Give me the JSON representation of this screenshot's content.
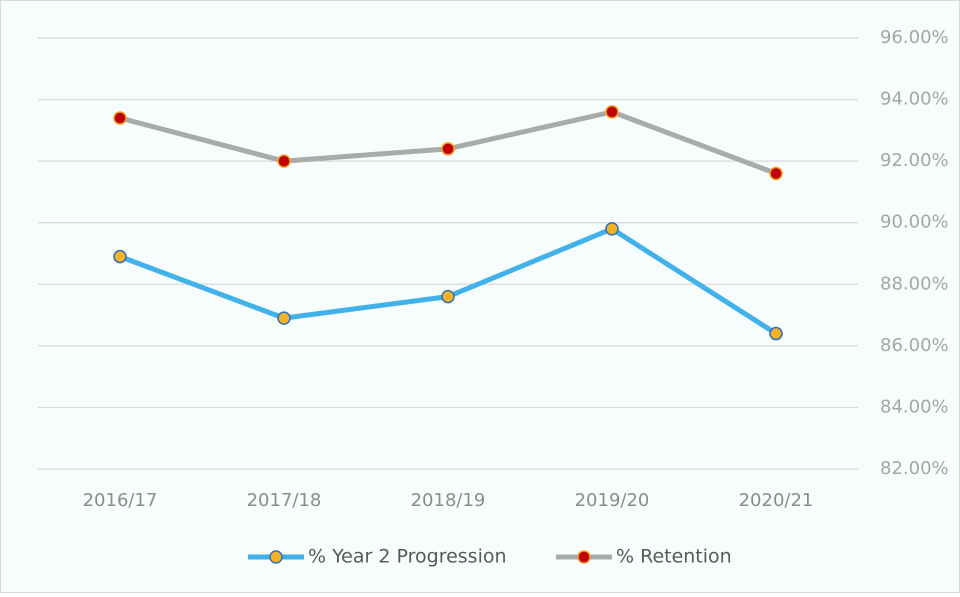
{
  "chart_data": {
    "type": "line",
    "categories": [
      "2016/17",
      "2017/18",
      "2018/19",
      "2019/20",
      "2020/21"
    ],
    "series": [
      {
        "name": "% Year 2 Progression",
        "color": "#41b1ea",
        "marker_color": "#f5b324",
        "marker_edge": "#2f6fc0",
        "values": [
          88.9,
          86.9,
          87.6,
          89.8,
          86.4
        ]
      },
      {
        "name": "% Retention",
        "color": "#a9aba9",
        "marker_color": "#c00000",
        "marker_edge": "#f0a020",
        "values": [
          93.4,
          92.0,
          92.4,
          93.6,
          91.6
        ]
      }
    ],
    "ylim": [
      82,
      96
    ],
    "yticks": [
      {
        "value": 82,
        "label": "82.00%"
      },
      {
        "value": 84,
        "label": "84.00%"
      },
      {
        "value": 86,
        "label": "86.00%"
      },
      {
        "value": 88,
        "label": "88.00%"
      },
      {
        "value": 90,
        "label": "90.00%"
      },
      {
        "value": 92,
        "label": "92.00%"
      },
      {
        "value": 94,
        "label": "94.00%"
      },
      {
        "value": 96,
        "label": "96.00%"
      }
    ],
    "y_axis_side": "right",
    "grid": true,
    "legend": "bottom"
  }
}
